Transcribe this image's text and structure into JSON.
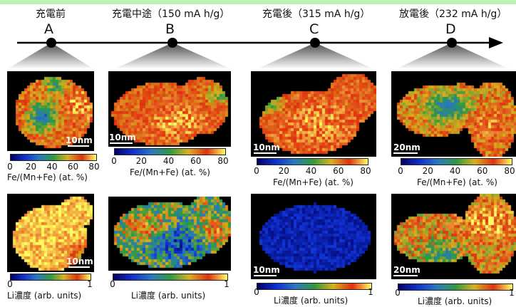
{
  "stages": [
    {
      "id": "A",
      "letter": "A",
      "title": "充電前"
    },
    {
      "id": "B",
      "letter": "B",
      "title": "充電中途（150 mA h/g）"
    },
    {
      "id": "C",
      "letter": "C",
      "title": "充電後（315 mA h/g）"
    },
    {
      "id": "D",
      "letter": "D",
      "title": "放電後（232 mA h/g）"
    }
  ],
  "fe_maps": [
    {
      "scale": "10nm"
    },
    {
      "scale": "10nm"
    },
    {
      "scale": "10nm"
    },
    {
      "scale": "20nm"
    }
  ],
  "li_maps": [
    {
      "scale": "10nm"
    },
    {
      "scale": ""
    },
    {
      "scale": "10nm"
    },
    {
      "scale": "20nm"
    }
  ],
  "fe_colorbar": {
    "ticks": [
      "0",
      "20",
      "40",
      "60",
      "80"
    ],
    "label": "Fe/(Mn+Fe) (at. %)"
  },
  "li_colorbar": {
    "ticks": [
      "0",
      "1"
    ],
    "label": "Li濃度 (arb. units)"
  },
  "colors": {
    "top_strip": "#bff2b8",
    "timeline": "#000000",
    "colormap": [
      "#000060",
      "#1030d0",
      "#2a78c0",
      "#2e9a40",
      "#d8b020",
      "#e03010",
      "#ffff60"
    ]
  }
}
